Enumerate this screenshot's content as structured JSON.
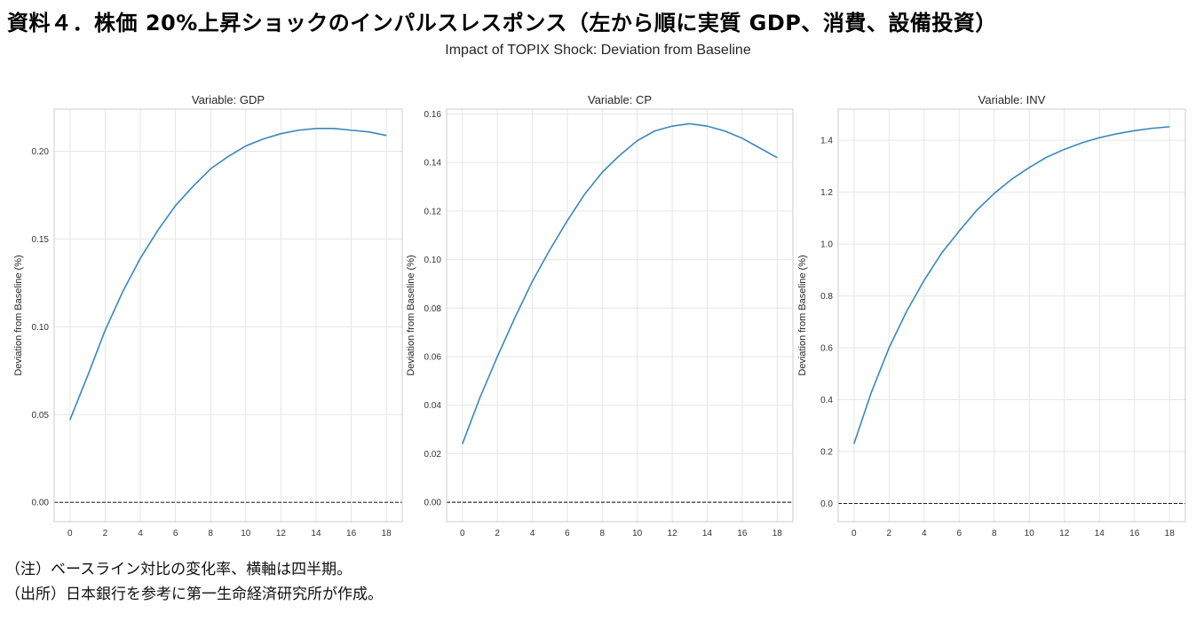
{
  "page": {
    "title": "資料４．株価 20%上昇ショックのインパルスレスポンス（左から順に実質 GDP、消費、設備投資）",
    "figure_title": "Impact of TOPIX Shock: Deviation from Baseline",
    "notes": [
      "（注）ベースライン対比の変化率、横軸は四半期。",
      "（出所）日本銀行を参考に第一生命経済研究所が作成。"
    ]
  },
  "colors": {
    "line": "#3a87bd",
    "grid": "#e6e6e6",
    "frame": "#cccccc",
    "zero_line": "#000000"
  },
  "chart_data": [
    {
      "type": "line",
      "title": "Variable: GDP",
      "xlabel": "",
      "ylabel": "Deviation from Baseline (%)",
      "xlim": [
        -0.9,
        18.9
      ],
      "ylim": [
        -0.011,
        0.224
      ],
      "xticks": [
        0,
        2,
        4,
        6,
        8,
        10,
        12,
        14,
        16,
        18
      ],
      "yticks": [
        0.0,
        0.05,
        0.1,
        0.15,
        0.2
      ],
      "ytick_labels": [
        "0.00",
        "0.05",
        "0.10",
        "0.15",
        "0.20"
      ],
      "grid": true,
      "zero_line": true,
      "x": [
        0,
        1,
        2,
        3,
        4,
        5,
        6,
        7,
        8,
        9,
        10,
        11,
        12,
        13,
        14,
        15,
        16,
        17,
        18
      ],
      "series": [
        {
          "values": [
            0.047,
            0.072,
            0.098,
            0.12,
            0.139,
            0.155,
            0.169,
            0.18,
            0.19,
            0.197,
            0.203,
            0.207,
            0.21,
            0.212,
            0.213,
            0.213,
            0.212,
            0.211,
            0.209
          ]
        }
      ]
    },
    {
      "type": "line",
      "title": "Variable: CP",
      "xlabel": "",
      "ylabel": "Deviation from Baseline (%)",
      "xlim": [
        -0.9,
        18.9
      ],
      "ylim": [
        -0.008,
        0.162
      ],
      "xticks": [
        0,
        2,
        4,
        6,
        8,
        10,
        12,
        14,
        16,
        18
      ],
      "yticks": [
        0.0,
        0.02,
        0.04,
        0.06,
        0.08,
        0.1,
        0.12,
        0.14,
        0.16
      ],
      "ytick_labels": [
        "0.00",
        "0.02",
        "0.04",
        "0.06",
        "0.08",
        "0.10",
        "0.12",
        "0.14",
        "0.16"
      ],
      "grid": true,
      "zero_line": true,
      "x": [
        0,
        1,
        2,
        3,
        4,
        5,
        6,
        7,
        8,
        9,
        10,
        11,
        12,
        13,
        14,
        15,
        16,
        17,
        18
      ],
      "series": [
        {
          "values": [
            0.024,
            0.043,
            0.06,
            0.076,
            0.091,
            0.104,
            0.116,
            0.127,
            0.136,
            0.143,
            0.149,
            0.153,
            0.155,
            0.156,
            0.155,
            0.153,
            0.15,
            0.146,
            0.142
          ]
        }
      ]
    },
    {
      "type": "line",
      "title": "Variable: INV",
      "xlabel": "",
      "ylabel": "Deviation from Baseline (%)",
      "xlim": [
        -0.9,
        18.9
      ],
      "ylim": [
        -0.07,
        1.52
      ],
      "xticks": [
        0,
        2,
        4,
        6,
        8,
        10,
        12,
        14,
        16,
        18
      ],
      "yticks": [
        0.0,
        0.2,
        0.4,
        0.6,
        0.8,
        1.0,
        1.2,
        1.4
      ],
      "ytick_labels": [
        "0.0",
        "0.2",
        "0.4",
        "0.6",
        "0.8",
        "1.0",
        "1.2",
        "1.4"
      ],
      "grid": true,
      "zero_line": true,
      "x": [
        0,
        1,
        2,
        3,
        4,
        5,
        6,
        7,
        8,
        9,
        10,
        11,
        12,
        13,
        14,
        15,
        16,
        17,
        18
      ],
      "series": [
        {
          "values": [
            0.23,
            0.43,
            0.6,
            0.74,
            0.86,
            0.965,
            1.05,
            1.13,
            1.195,
            1.25,
            1.295,
            1.335,
            1.365,
            1.39,
            1.41,
            1.425,
            1.437,
            1.446,
            1.452
          ]
        }
      ]
    }
  ]
}
